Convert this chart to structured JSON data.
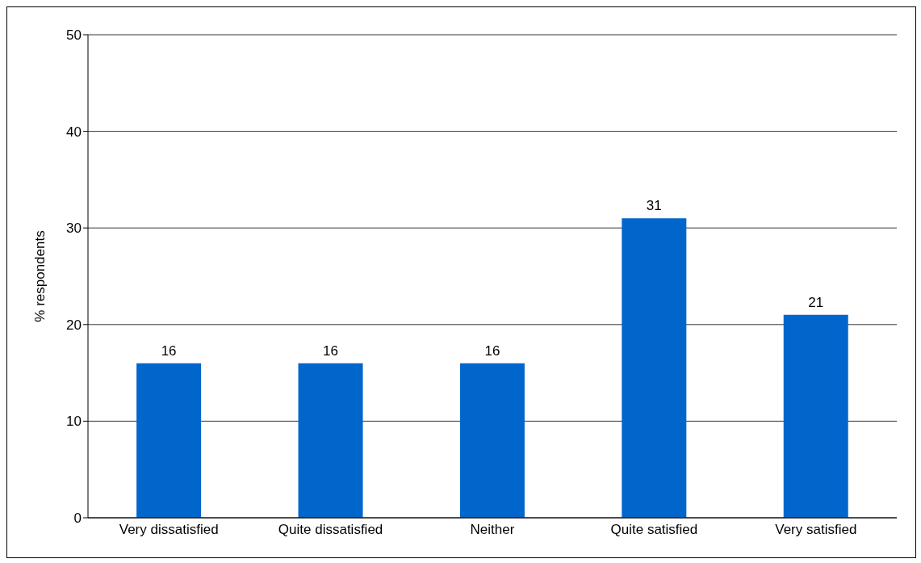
{
  "chart_data": {
    "type": "bar",
    "ylabel": "% respondents",
    "categories": [
      "Very dissatisfied",
      "Quite dissatisfied",
      "Neither",
      "Quite satisfied",
      "Very satisfied"
    ],
    "series": [
      {
        "color": "#0066cc",
        "values": [
          16,
          16,
          16,
          31,
          21
        ]
      }
    ],
    "ylim": [
      0,
      50
    ],
    "yticks": [
      0,
      10,
      20,
      30,
      40,
      50
    ],
    "grid": "y",
    "data_labels": true
  }
}
